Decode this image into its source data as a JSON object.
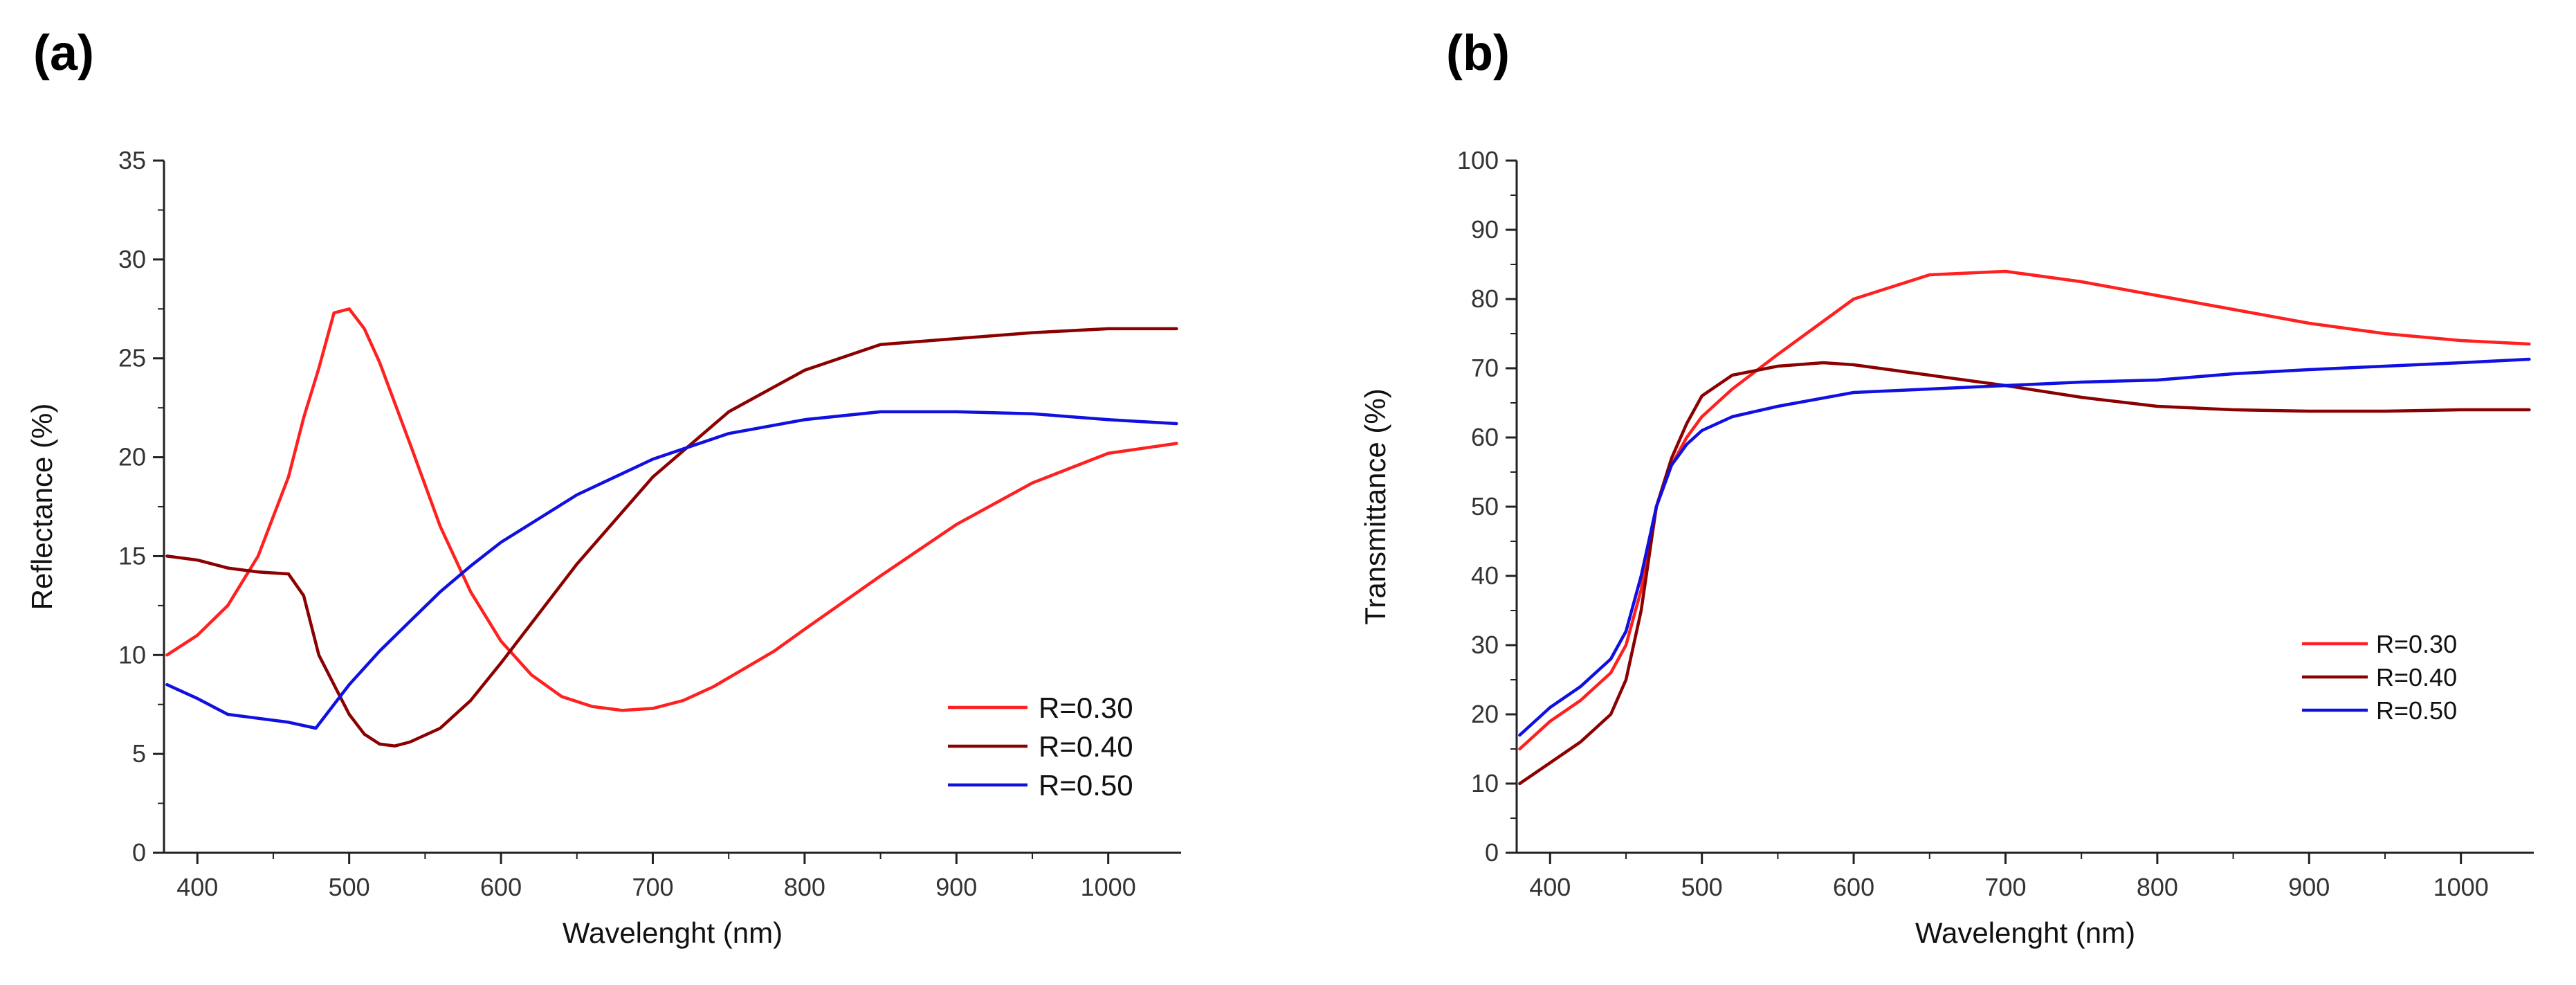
{
  "panels": {
    "a": {
      "label": "(a)"
    },
    "b": {
      "label": "(b)"
    }
  },
  "chart_data": [
    {
      "type": "line",
      "panel": "(a)",
      "title": "",
      "xlabel": "Wavelenght (nm)",
      "ylabel": "Reflectance (%)",
      "xlim": [
        378,
        1048
      ],
      "ylim": [
        0,
        35
      ],
      "xticks": [
        400,
        500,
        600,
        700,
        800,
        900,
        1000
      ],
      "yticks": [
        0,
        5,
        10,
        15,
        20,
        25,
        30,
        35
      ],
      "grid": false,
      "legend_position": "bottom-right",
      "series": [
        {
          "name": "R=0.30",
          "color": "#ff2020",
          "x": [
            380,
            400,
            420,
            440,
            460,
            470,
            480,
            490,
            500,
            510,
            520,
            540,
            560,
            580,
            600,
            620,
            640,
            660,
            680,
            700,
            720,
            740,
            760,
            780,
            800,
            850,
            900,
            950,
            1000,
            1045
          ],
          "y": [
            10,
            11,
            12.5,
            15,
            19,
            22,
            24.5,
            27.3,
            27.5,
            26.5,
            24.8,
            20.7,
            16.5,
            13.2,
            10.7,
            9.0,
            7.9,
            7.4,
            7.2,
            7.3,
            7.7,
            8.4,
            9.3,
            10.2,
            11.3,
            14.0,
            16.6,
            18.7,
            20.2,
            20.7
          ]
        },
        {
          "name": "R=0.40",
          "color": "#8b0000",
          "x": [
            380,
            400,
            420,
            440,
            460,
            470,
            480,
            490,
            500,
            510,
            520,
            530,
            540,
            560,
            580,
            600,
            620,
            650,
            700,
            750,
            800,
            850,
            900,
            950,
            1000,
            1045
          ],
          "y": [
            15,
            14.8,
            14.4,
            14.2,
            14.1,
            13.0,
            10.0,
            8.5,
            7.0,
            6.0,
            5.5,
            5.4,
            5.6,
            6.3,
            7.7,
            9.6,
            11.6,
            14.6,
            19.0,
            22.3,
            24.4,
            25.7,
            26.0,
            26.3,
            26.5,
            26.5
          ]
        },
        {
          "name": "R=0.50",
          "color": "#1010e0",
          "x": [
            380,
            400,
            420,
            440,
            460,
            478,
            490,
            500,
            520,
            540,
            560,
            580,
            600,
            650,
            700,
            750,
            800,
            850,
            900,
            950,
            1000,
            1045
          ],
          "y": [
            8.5,
            7.8,
            7.0,
            6.8,
            6.6,
            6.3,
            7.5,
            8.5,
            10.2,
            11.7,
            13.2,
            14.5,
            15.7,
            18.1,
            19.9,
            21.2,
            21.9,
            22.3,
            22.3,
            22.2,
            21.9,
            21.7
          ]
        }
      ]
    },
    {
      "type": "line",
      "panel": "(b)",
      "title": "",
      "xlabel": "Wavelenght (nm)",
      "ylabel": "Transmittance (%)",
      "xlim": [
        378,
        1048
      ],
      "ylim": [
        0,
        100
      ],
      "xticks": [
        400,
        500,
        600,
        700,
        800,
        900,
        1000
      ],
      "yticks": [
        0,
        10,
        20,
        30,
        40,
        50,
        60,
        70,
        80,
        90,
        100
      ],
      "grid": false,
      "legend_position": "right",
      "series": [
        {
          "name": "R=0.30",
          "color": "#ff2020",
          "x": [
            380,
            400,
            420,
            440,
            450,
            460,
            470,
            480,
            490,
            500,
            520,
            550,
            600,
            650,
            700,
            750,
            800,
            850,
            900,
            950,
            1000,
            1045
          ],
          "y": [
            15,
            19,
            22,
            26,
            30,
            38,
            50,
            56,
            60,
            63,
            67,
            72,
            80,
            83.5,
            84,
            82.5,
            80.5,
            78.5,
            76.5,
            75,
            74,
            73.5
          ]
        },
        {
          "name": "R=0.40",
          "color": "#8b0000",
          "x": [
            380,
            400,
            420,
            440,
            450,
            460,
            470,
            480,
            490,
            500,
            520,
            550,
            580,
            600,
            650,
            700,
            750,
            800,
            850,
            900,
            950,
            1000,
            1045
          ],
          "y": [
            10,
            13,
            16,
            20,
            25,
            35,
            50,
            57,
            62,
            66,
            69,
            70.3,
            70.8,
            70.5,
            69,
            67.5,
            65.8,
            64.5,
            64.0,
            63.8,
            63.8,
            64.0,
            64.0
          ]
        },
        {
          "name": "R=0.50",
          "color": "#1010e0",
          "x": [
            380,
            400,
            420,
            440,
            450,
            460,
            470,
            480,
            490,
            500,
            520,
            550,
            600,
            650,
            700,
            750,
            800,
            850,
            900,
            950,
            1000,
            1045
          ],
          "y": [
            17,
            21,
            24,
            28,
            32,
            40,
            50,
            56,
            59,
            61,
            63,
            64.5,
            66.5,
            67,
            67.5,
            68,
            68.3,
            69.2,
            69.8,
            70.3,
            70.8,
            71.3
          ]
        }
      ]
    }
  ]
}
